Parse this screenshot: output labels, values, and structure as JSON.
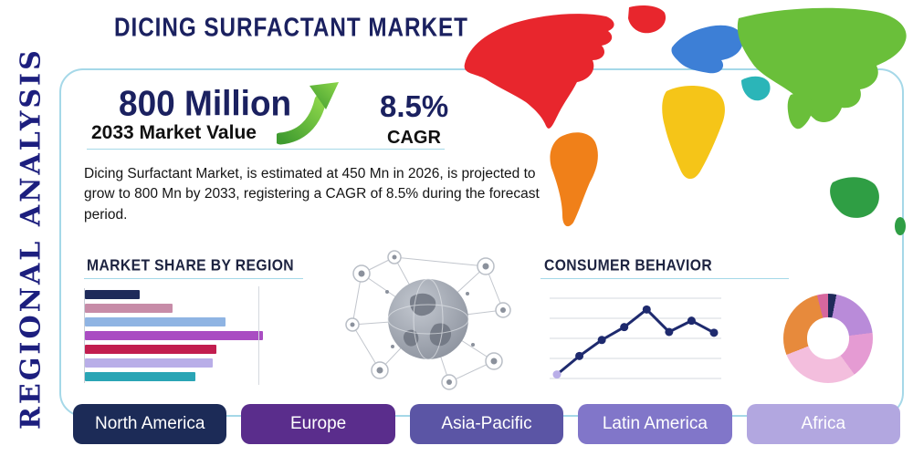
{
  "header": {
    "title": "DICING SURFACTANT MARKET",
    "side_label": "REGIONAL ANALYSIS"
  },
  "stats": {
    "market_value": "800 Million",
    "market_value_caption": "2033 Market Value",
    "cagr_value": "8.5%",
    "cagr_caption": "CAGR"
  },
  "description": "Dicing Surfactant Market, is estimated at 450 Mn in 2026, is projected to grow to 800 Mn by 2033, registering a CAGR of 8.5% during the forecast period.",
  "section_titles": {
    "market_share": "MARKET SHARE BY REGION",
    "consumer_behavior": "CONSUMER BEHAVIOR"
  },
  "region_buttons": [
    {
      "label": "North America",
      "color": "#1c2b57"
    },
    {
      "label": "Europe",
      "color": "#5a2d8c"
    },
    {
      "label": "Asia-Pacific",
      "color": "#5b55a5"
    },
    {
      "label": "Latin America",
      "color": "#8176c9"
    },
    {
      "label": "Africa",
      "color": "#b2a7e0"
    }
  ],
  "colors": {
    "accent_navy": "#1b2160",
    "frame_blue": "#a5d8e8",
    "arrow_green": "#56b82e"
  },
  "chart_data": [
    {
      "name": "market_share_by_region",
      "type": "bar",
      "orientation": "horizontal",
      "title": "MARKET SHARE BY REGION",
      "values": [
        31,
        49,
        79,
        100,
        74,
        72,
        62
      ],
      "colors": [
        "#1e2a5a",
        "#c78ca8",
        "#8fb4e3",
        "#a94dc2",
        "#c21d4f",
        "#b9aee8",
        "#2aa5b5"
      ],
      "xlim": [
        0,
        100
      ],
      "note": "unlabeled relative bar lengths, no axis tick labels shown"
    },
    {
      "name": "consumer_behavior_trend",
      "type": "line",
      "title": "CONSUMER BEHAVIOR",
      "x": [
        1,
        2,
        3,
        4,
        5,
        6,
        7,
        8
      ],
      "y": [
        5,
        28,
        48,
        64,
        86,
        58,
        72,
        57
      ],
      "color": "#1e2a6e",
      "first_point_color": "#b9aee8",
      "grid": true,
      "note": "unlabeled trend line, rises to a peak then dips"
    },
    {
      "name": "regional_split_donut",
      "type": "pie",
      "donut": true,
      "slices": [
        {
          "color": "#1e2a5a",
          "value": 3
        },
        {
          "color": "#b98bd9",
          "value": 20
        },
        {
          "color": "#e59bd3",
          "value": 17
        },
        {
          "color": "#f3bedd",
          "value": 29
        },
        {
          "color": "#e78a3c",
          "value": 27
        },
        {
          "color": "#d6679e",
          "value": 4
        }
      ],
      "note": "unlabeled donut chart"
    }
  ],
  "map": {
    "regions": [
      {
        "name": "north-america",
        "color": "#e8262d"
      },
      {
        "name": "greenland",
        "color": "#e8262d"
      },
      {
        "name": "south-america",
        "color": "#f08019"
      },
      {
        "name": "europe",
        "color": "#3d7fd6"
      },
      {
        "name": "africa",
        "color": "#f5c518"
      },
      {
        "name": "asia",
        "color": "#6abf3a"
      },
      {
        "name": "middle-east",
        "color": "#2bb5b8"
      },
      {
        "name": "australia",
        "color": "#2f9e44"
      }
    ]
  }
}
